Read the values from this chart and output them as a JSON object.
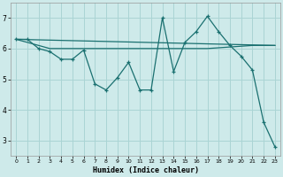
{
  "xlabel": "Humidex (Indice chaleur)",
  "bg_color": "#ceeaea",
  "grid_color": "#aad4d4",
  "line_color": "#1a7070",
  "xlim": [
    -0.5,
    23.5
  ],
  "ylim": [
    2.5,
    7.5
  ],
  "yticks": [
    3,
    4,
    5,
    6,
    7
  ],
  "xticks": [
    0,
    1,
    2,
    3,
    4,
    5,
    6,
    7,
    8,
    9,
    10,
    11,
    12,
    13,
    14,
    15,
    16,
    17,
    18,
    19,
    20,
    21,
    22,
    23
  ],
  "series1_x": [
    0,
    1,
    2,
    3,
    4,
    5,
    6,
    7,
    8,
    9,
    10,
    11,
    12,
    13,
    14,
    15,
    16,
    17,
    18,
    19,
    20,
    21,
    22,
    23
  ],
  "series1_y": [
    6.3,
    6.3,
    6.0,
    5.9,
    5.65,
    5.65,
    5.95,
    4.85,
    4.65,
    5.05,
    5.55,
    4.65,
    4.65,
    7.0,
    5.25,
    6.2,
    6.55,
    7.05,
    6.55,
    6.1,
    5.75,
    5.3,
    3.6,
    2.8
  ],
  "series2_x": [
    0,
    23
  ],
  "series2_y": [
    6.3,
    6.1
  ],
  "series3_x": [
    0,
    3,
    6,
    10,
    12,
    15,
    17,
    19,
    21,
    23
  ],
  "series3_y": [
    6.3,
    6.0,
    6.0,
    6.0,
    6.0,
    6.0,
    6.0,
    6.05,
    6.1,
    6.1
  ]
}
